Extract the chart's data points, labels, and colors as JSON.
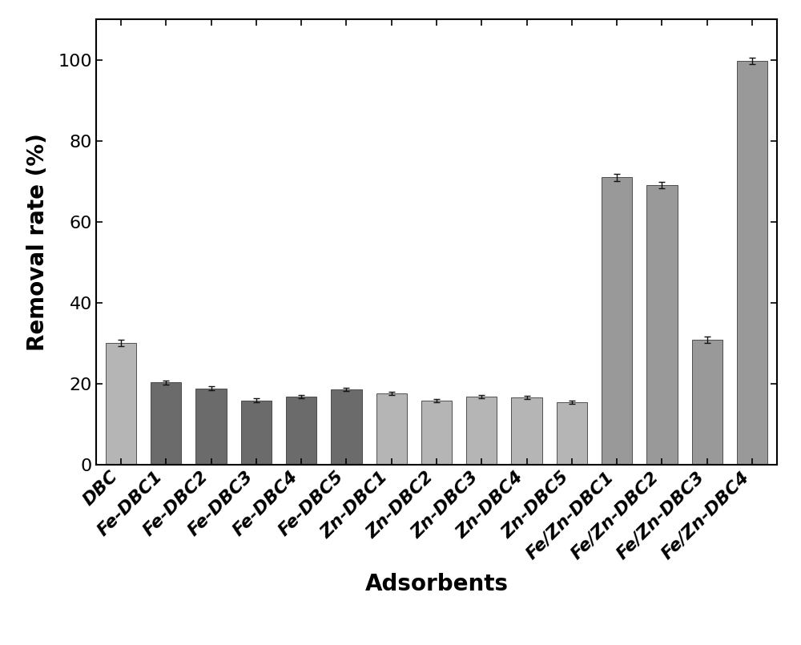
{
  "categories": [
    "DBC",
    "Fe-DBC1",
    "Fe-DBC2",
    "Fe-DBC3",
    "Fe-DBC4",
    "Fe-DBC5",
    "Zn-DBC1",
    "Zn-DBC2",
    "Zn-DBC3",
    "Zn-DBC4",
    "Zn-DBC5",
    "Fe/Zn-DBC1",
    "Fe/Zn-DBC2",
    "Fe/Zn-DBC3",
    "Fe/Zn-DBC4"
  ],
  "values": [
    30.0,
    20.3,
    18.8,
    15.8,
    16.7,
    18.5,
    17.5,
    15.8,
    16.8,
    16.5,
    15.3,
    71.0,
    69.0,
    30.8,
    99.8
  ],
  "errors": [
    0.8,
    0.5,
    0.5,
    0.5,
    0.4,
    0.4,
    0.4,
    0.4,
    0.4,
    0.4,
    0.4,
    0.9,
    0.8,
    0.8,
    0.8
  ],
  "bar_colors": [
    "#b5b5b5",
    "#6b6b6b",
    "#6b6b6b",
    "#6b6b6b",
    "#6b6b6b",
    "#6b6b6b",
    "#b5b5b5",
    "#b5b5b5",
    "#b5b5b5",
    "#b5b5b5",
    "#b5b5b5",
    "#999999",
    "#999999",
    "#999999",
    "#999999"
  ],
  "bar_edgecolor": "#3a3a3a",
  "ylabel": "Removal rate (%)",
  "xlabel": "Adsorbents",
  "ylim": [
    0,
    110
  ],
  "yticks": [
    0,
    20,
    40,
    60,
    80,
    100
  ],
  "label_fontsize": 20,
  "tick_fontsize": 16,
  "bar_width": 0.68,
  "figsize": [
    10.0,
    8.05
  ],
  "dpi": 100,
  "background_color": "#ffffff",
  "spine_color": "#000000",
  "error_color": "#111111"
}
